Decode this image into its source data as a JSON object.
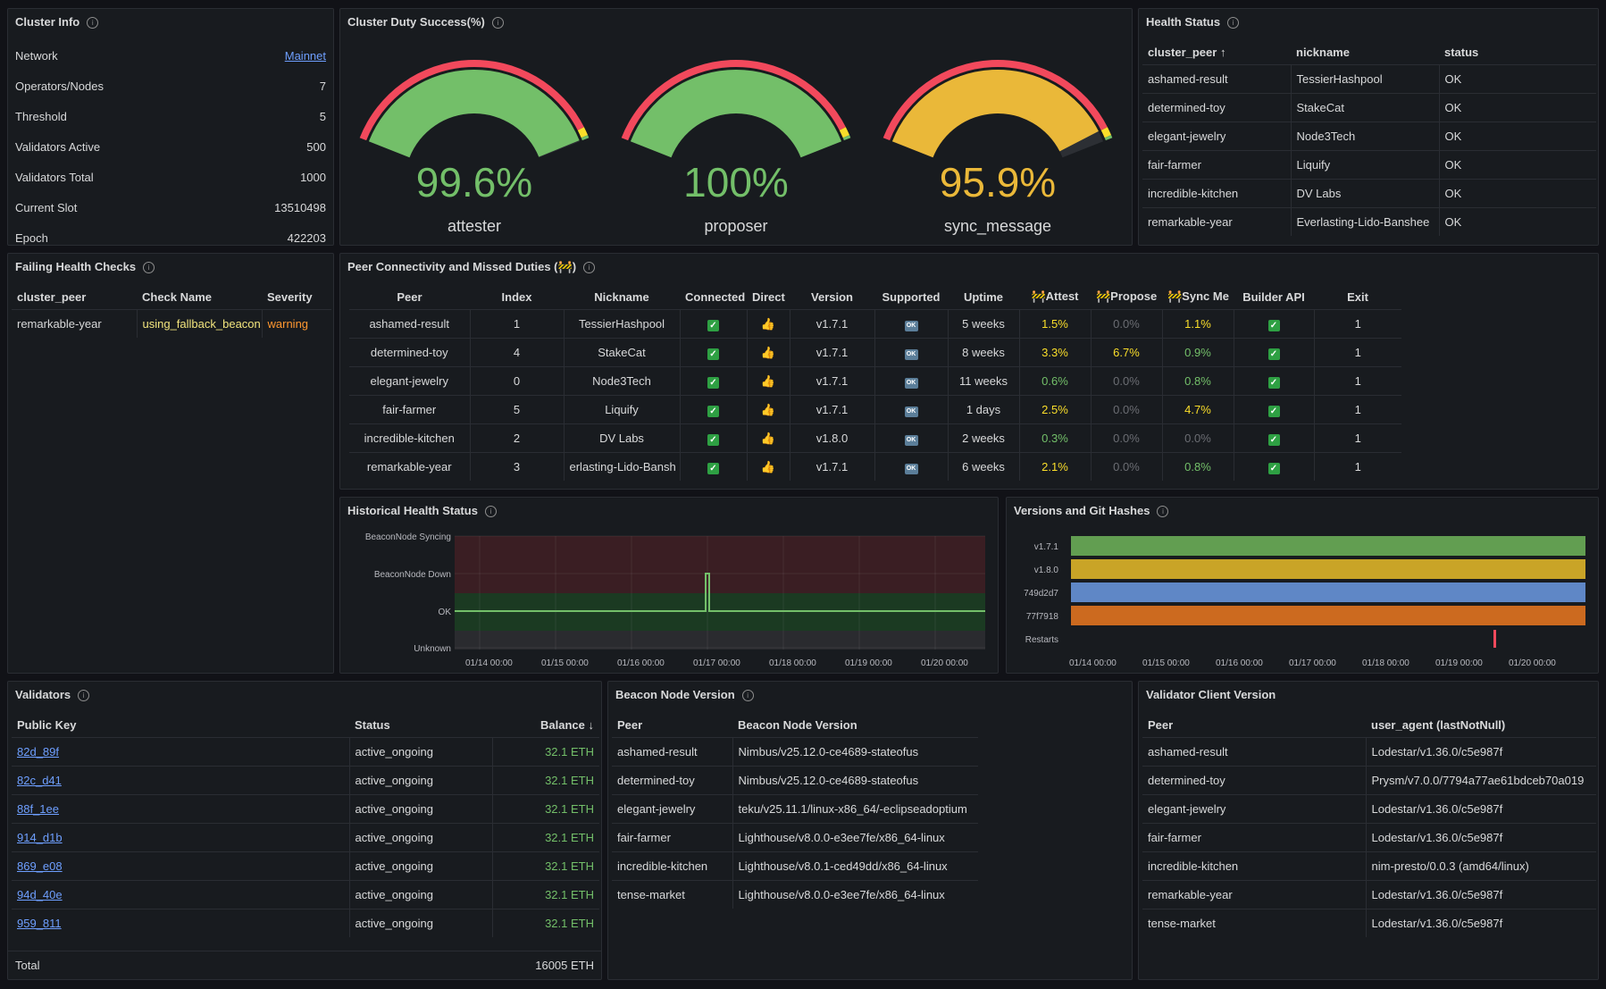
{
  "cluster_info": {
    "title": "Cluster Info",
    "rows": [
      {
        "label": "Network",
        "value": "Mainnet"
      },
      {
        "label": "Operators/Nodes",
        "value": "7"
      },
      {
        "label": "Threshold",
        "value": "5"
      },
      {
        "label": "Validators Active",
        "value": "500"
      },
      {
        "label": "Validators Total",
        "value": "1000"
      },
      {
        "label": "Current Slot",
        "value": "13510498"
      },
      {
        "label": "Epoch",
        "value": "422203"
      }
    ]
  },
  "duty_success": {
    "title": "Cluster Duty Success(%)",
    "gauges": [
      {
        "value": "99.6%",
        "label": "attester",
        "fraction": 0.996,
        "color": "#73bf69"
      },
      {
        "value": "100%",
        "label": "proposer",
        "fraction": 1.0,
        "color": "#73bf69"
      },
      {
        "value": "95.9%",
        "label": "sync_message",
        "fraction": 0.959,
        "color": "#eab839"
      }
    ]
  },
  "health_status": {
    "title": "Health Status",
    "headers": [
      "cluster_peer",
      "nickname",
      "status"
    ],
    "sort_icon": "↑",
    "rows": [
      [
        "ashamed-result",
        "TessierHashpool",
        "OK"
      ],
      [
        "determined-toy",
        "StakeCat",
        "OK"
      ],
      [
        "elegant-jewelry",
        "Node3Tech",
        "OK"
      ],
      [
        "fair-farmer",
        "Liquify",
        "OK"
      ],
      [
        "incredible-kitchen",
        "DV Labs",
        "OK"
      ],
      [
        "remarkable-year",
        "Everlasting-Lido-Banshee",
        "OK"
      ]
    ]
  },
  "failing_checks": {
    "title": "Failing Health Checks",
    "headers": [
      "cluster_peer",
      "Check Name",
      "Severity"
    ],
    "rows": [
      [
        "remarkable-year",
        "using_fallback_beacon",
        "warning"
      ]
    ]
  },
  "peer_conn": {
    "title": "Peer Connectivity and Missed Duties (🚧)",
    "headers": [
      "Peer",
      "Index",
      "Nickname",
      "Connected",
      "Direct",
      "Version",
      "Supported",
      "Uptime",
      "🚧Attest",
      "🚧Propose",
      "🚧Sync Me",
      "Builder API",
      "Exit"
    ],
    "rows": [
      {
        "peer": "ashamed-result",
        "index": "1",
        "nickname": "TessierHashpool",
        "version": "v1.7.1",
        "uptime": "5 weeks",
        "attest": "1.5%",
        "propose": "0.0%",
        "sync": "1.1%",
        "exit": "1"
      },
      {
        "peer": "determined-toy",
        "index": "4",
        "nickname": "StakeCat",
        "version": "v1.7.1",
        "uptime": "8 weeks",
        "attest": "3.3%",
        "propose": "6.7%",
        "sync": "0.9%",
        "exit": "1"
      },
      {
        "peer": "elegant-jewelry",
        "index": "0",
        "nickname": "Node3Tech",
        "version": "v1.7.1",
        "uptime": "11 weeks",
        "attest": "0.6%",
        "propose": "0.0%",
        "sync": "0.8%",
        "exit": "1"
      },
      {
        "peer": "fair-farmer",
        "index": "5",
        "nickname": "Liquify",
        "version": "v1.7.1",
        "uptime": "1 days",
        "attest": "2.5%",
        "propose": "0.0%",
        "sync": "4.7%",
        "exit": "1"
      },
      {
        "peer": "incredible-kitchen",
        "index": "2",
        "nickname": "DV Labs",
        "version": "v1.8.0",
        "uptime": "2 weeks",
        "attest": "0.3%",
        "propose": "0.0%",
        "sync": "0.0%",
        "exit": "1"
      },
      {
        "peer": "remarkable-year",
        "index": "3",
        "nickname": "erlasting-Lido-Bansh",
        "version": "v1.7.1",
        "uptime": "6 weeks",
        "attest": "2.1%",
        "propose": "0.0%",
        "sync": "0.8%",
        "exit": "1"
      }
    ],
    "ok_label": "OK"
  },
  "historical": {
    "title": "Historical Health Status",
    "y_labels": [
      "BeaconNode Syncing",
      "BeaconNode Down",
      "OK",
      "Unknown"
    ],
    "x_labels": [
      "01/14 00:00",
      "01/15 00:00",
      "01/16 00:00",
      "01/17 00:00",
      "01/18 00:00",
      "01/19 00:00",
      "01/20 00:00"
    ]
  },
  "versions": {
    "title": "Versions and Git Hashes",
    "y_labels": [
      "v1.7.1",
      "v1.8.0",
      "749d2d7",
      "77f7918",
      "Restarts"
    ],
    "colors": [
      "#629e51",
      "#c9a427",
      "#5f87c6",
      "#cc6a1f"
    ],
    "x_labels": [
      "01/14 00:00",
      "01/15 00:00",
      "01/16 00:00",
      "01/17 00:00",
      "01/18 00:00",
      "01/19 00:00",
      "01/20 00:00"
    ]
  },
  "chart_data": [
    {
      "type": "line",
      "title": "Historical Health Status",
      "categories_y": [
        "Unknown",
        "OK",
        "BeaconNode Down",
        "BeaconNode Syncing"
      ],
      "x": [
        "01/14 00:00",
        "01/15 00:00",
        "01/16 00:00",
        "01/17 00:00",
        "01/18 00:00",
        "01/19 00:00",
        "01/20 00:00"
      ],
      "series": [
        {
          "name": "status",
          "baseline": "OK",
          "spike_at": "01/17 00:00",
          "spike_to": "BeaconNode Down"
        }
      ]
    },
    {
      "type": "bar",
      "title": "Versions and Git Hashes",
      "categories": [
        "v1.7.1",
        "v1.8.0",
        "749d2d7",
        "77f7918"
      ],
      "restart_at": "01/19 09:00"
    }
  ],
  "validators": {
    "title": "Validators",
    "headers": [
      "Public Key",
      "Status",
      "Balance"
    ],
    "sort_icon": "↓",
    "rows": [
      [
        "82d_89f",
        "active_ongoing",
        "32.1 ETH"
      ],
      [
        "82c_d41",
        "active_ongoing",
        "32.1 ETH"
      ],
      [
        "88f_1ee",
        "active_ongoing",
        "32.1 ETH"
      ],
      [
        "914_d1b",
        "active_ongoing",
        "32.1 ETH"
      ],
      [
        "869_e08",
        "active_ongoing",
        "32.1 ETH"
      ],
      [
        "94d_40e",
        "active_ongoing",
        "32.1 ETH"
      ],
      [
        "959_811",
        "active_ongoing",
        "32.1 ETH"
      ]
    ],
    "total_label": "Total",
    "total_value": "16005 ETH"
  },
  "beacon": {
    "title": "Beacon Node Version",
    "headers": [
      "Peer",
      "Beacon Node Version"
    ],
    "rows": [
      [
        "ashamed-result",
        "Nimbus/v25.12.0-ce4689-stateofus"
      ],
      [
        "determined-toy",
        "Nimbus/v25.12.0-ce4689-stateofus"
      ],
      [
        "elegant-jewelry",
        "teku/v25.11.1/linux-x86_64/-eclipseadoptium"
      ],
      [
        "fair-farmer",
        "Lighthouse/v8.0.0-e3ee7fe/x86_64-linux"
      ],
      [
        "incredible-kitchen",
        "Lighthouse/v8.0.1-ced49dd/x86_64-linux"
      ],
      [
        "tense-market",
        "Lighthouse/v8.0.0-e3ee7fe/x86_64-linux"
      ]
    ]
  },
  "vc": {
    "title": "Validator Client Version",
    "headers": [
      "Peer",
      "user_agent (lastNotNull)"
    ],
    "rows": [
      [
        "ashamed-result",
        "Lodestar/v1.36.0/c5e987f"
      ],
      [
        "determined-toy",
        "Prysm/v7.0.0/7794a77ae61bdceb70a019"
      ],
      [
        "elegant-jewelry",
        "Lodestar/v1.36.0/c5e987f"
      ],
      [
        "fair-farmer",
        "Lodestar/v1.36.0/c5e987f"
      ],
      [
        "incredible-kitchen",
        "nim-presto/0.0.3 (amd64/linux)"
      ],
      [
        "remarkable-year",
        "Lodestar/v1.36.0/c5e987f"
      ],
      [
        "tense-market",
        "Lodestar/v1.36.0/c5e987f"
      ]
    ]
  }
}
